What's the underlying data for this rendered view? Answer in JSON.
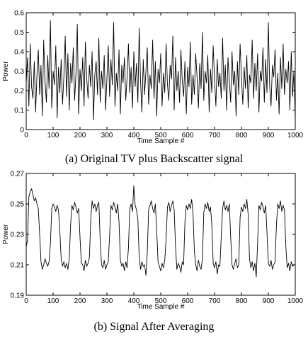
{
  "chart_data": [
    {
      "type": "line",
      "caption": "(a) Original TV plus Backscatter signal",
      "xlabel": "Time Sample #",
      "ylabel": "Power",
      "xlim": [
        0,
        1000
      ],
      "ylim": [
        0,
        0.6
      ],
      "xticks": [
        0,
        100,
        200,
        300,
        400,
        500,
        600,
        700,
        800,
        900,
        1000
      ],
      "yticks": [
        0,
        0.1,
        0.2,
        0.3,
        0.4,
        0.5,
        0.6
      ],
      "yticklabels": [
        "0",
        "0.1",
        "0.2",
        "0.3",
        "0.4",
        "0.5",
        "0.6"
      ],
      "grid": false,
      "series_description": "noisy signal fluctuating roughly between 0.02 and 0.57",
      "series": [
        {
          "x_start": 0,
          "x_step": 5,
          "values": [
            0.24,
            0.37,
            0.12,
            0.44,
            0.22,
            0.16,
            0.35,
            0.09,
            0.28,
            0.41,
            0.18,
            0.33,
            0.07,
            0.46,
            0.25,
            0.14,
            0.38,
            0.21,
            0.56,
            0.11,
            0.3,
            0.23,
            0.43,
            0.06,
            0.32,
            0.19,
            0.36,
            0.13,
            0.27,
            0.48,
            0.17,
            0.39,
            0.1,
            0.34,
            0.24,
            0.42,
            0.15,
            0.29,
            0.54,
            0.08,
            0.31,
            0.2,
            0.37,
            0.12,
            0.45,
            0.26,
            0.16,
            0.33,
            0.22,
            0.4,
            0.05,
            0.28,
            0.35,
            0.18,
            0.47,
            0.14,
            0.3,
            0.21,
            0.38,
            0.1,
            0.26,
            0.43,
            0.17,
            0.36,
            0.23,
            0.55,
            0.12,
            0.29,
            0.2,
            0.41,
            0.08,
            0.33,
            0.24,
            0.37,
            0.15,
            0.27,
            0.44,
            0.19,
            0.32,
            0.11,
            0.4,
            0.22,
            0.34,
            0.14,
            0.52,
            0.25,
            0.09,
            0.36,
            0.18,
            0.3,
            0.42,
            0.13,
            0.28,
            0.21,
            0.46,
            0.16,
            0.35,
            0.07,
            0.31,
            0.24,
            0.39,
            0.12,
            0.29,
            0.19,
            0.44,
            0.23,
            0.15,
            0.33,
            0.26,
            0.48,
            0.1,
            0.37,
            0.2,
            0.3,
            0.14,
            0.41,
            0.25,
            0.17,
            0.35,
            0.08,
            0.32,
            0.22,
            0.45,
            0.13,
            0.28,
            0.18,
            0.39,
            0.27,
            0.11,
            0.34,
            0.21,
            0.5,
            0.15,
            0.3,
            0.24,
            0.38,
            0.09,
            0.31,
            0.19,
            0.43,
            0.26,
            0.12,
            0.36,
            0.22,
            0.29,
            0.16,
            0.47,
            0.2,
            0.33,
            0.1,
            0.37,
            0.25,
            0.14,
            0.4,
            0.23,
            0.3,
            0.07,
            0.35,
            0.18,
            0.44,
            0.27,
            0.13,
            0.32,
            0.21,
            0.38,
            0.11,
            0.28,
            0.24,
            0.46,
            0.16,
            0.34,
            0.2,
            0.39,
            0.09,
            0.3,
            0.25,
            0.42,
            0.14,
            0.36,
            0.19,
            0.55,
            0.22,
            0.12,
            0.33,
            0.27,
            0.41,
            0.15,
            0.29,
            0.08,
            0.37,
            0.21,
            0.44,
            0.18,
            0.31,
            0.24,
            0.35,
            0.1,
            0.4,
            0.17,
            0.3,
            0.05
          ]
        }
      ]
    },
    {
      "type": "line",
      "caption": "(b) Signal After Averaging",
      "xlabel": "Time Sample #",
      "ylabel": "Power",
      "xlim": [
        0,
        1000
      ],
      "ylim": [
        0.19,
        0.27
      ],
      "xticks": [
        0,
        100,
        200,
        300,
        400,
        500,
        600,
        700,
        800,
        900,
        1000
      ],
      "yticks": [
        0.19,
        0.21,
        0.23,
        0.25,
        0.27
      ],
      "yticklabels": [
        "0.19",
        "0.21",
        "0.23",
        "0.25",
        "0.27"
      ],
      "grid": false,
      "series_description": "square-wave-like signal alternating between about 0.248 (high) and 0.210 (low), period about 80 samples",
      "series": [
        {
          "x_start": 0,
          "x_step": 5,
          "values": [
            0.222,
            0.226,
            0.255,
            0.258,
            0.26,
            0.256,
            0.252,
            0.254,
            0.25,
            0.247,
            0.23,
            0.212,
            0.207,
            0.21,
            0.214,
            0.211,
            0.209,
            0.212,
            0.224,
            0.247,
            0.25,
            0.248,
            0.245,
            0.249,
            0.246,
            0.232,
            0.214,
            0.209,
            0.212,
            0.208,
            0.211,
            0.207,
            0.214,
            0.236,
            0.249,
            0.246,
            0.251,
            0.248,
            0.244,
            0.247,
            0.228,
            0.211,
            0.21,
            0.206,
            0.213,
            0.209,
            0.211,
            0.215,
            0.24,
            0.252,
            0.247,
            0.25,
            0.245,
            0.249,
            0.251,
            0.226,
            0.21,
            0.208,
            0.213,
            0.207,
            0.21,
            0.212,
            0.229,
            0.249,
            0.246,
            0.251,
            0.248,
            0.244,
            0.25,
            0.238,
            0.213,
            0.209,
            0.211,
            0.206,
            0.212,
            0.208,
            0.221,
            0.247,
            0.25,
            0.245,
            0.262,
            0.249,
            0.246,
            0.24,
            0.215,
            0.207,
            0.212,
            0.209,
            0.21,
            0.203,
            0.218,
            0.246,
            0.249,
            0.252,
            0.247,
            0.244,
            0.25,
            0.233,
            0.212,
            0.209,
            0.206,
            0.211,
            0.208,
            0.213,
            0.227,
            0.248,
            0.251,
            0.245,
            0.249,
            0.252,
            0.246,
            0.222,
            0.207,
            0.211,
            0.209,
            0.205,
            0.212,
            0.21,
            0.238,
            0.249,
            0.246,
            0.25,
            0.247,
            0.253,
            0.244,
            0.219,
            0.21,
            0.206,
            0.213,
            0.209,
            0.207,
            0.214,
            0.244,
            0.25,
            0.247,
            0.251,
            0.245,
            0.248,
            0.236,
            0.211,
            0.208,
            0.212,
            0.204,
            0.21,
            0.209,
            0.229,
            0.247,
            0.252,
            0.246,
            0.249,
            0.245,
            0.25,
            0.228,
            0.21,
            0.207,
            0.211,
            0.214,
            0.208,
            0.21,
            0.241,
            0.248,
            0.245,
            0.25,
            0.247,
            0.253,
            0.243,
            0.214,
            0.208,
            0.212,
            0.206,
            0.211,
            0.202,
            0.224,
            0.249,
            0.246,
            0.251,
            0.248,
            0.244,
            0.249,
            0.231,
            0.211,
            0.209,
            0.213,
            0.207,
            0.21,
            0.212,
            0.236,
            0.25,
            0.247,
            0.252,
            0.245,
            0.249,
            0.246,
            0.222,
            0.208,
            0.211,
            0.206,
            0.212,
            0.209,
            0.21
          ]
        }
      ]
    }
  ]
}
